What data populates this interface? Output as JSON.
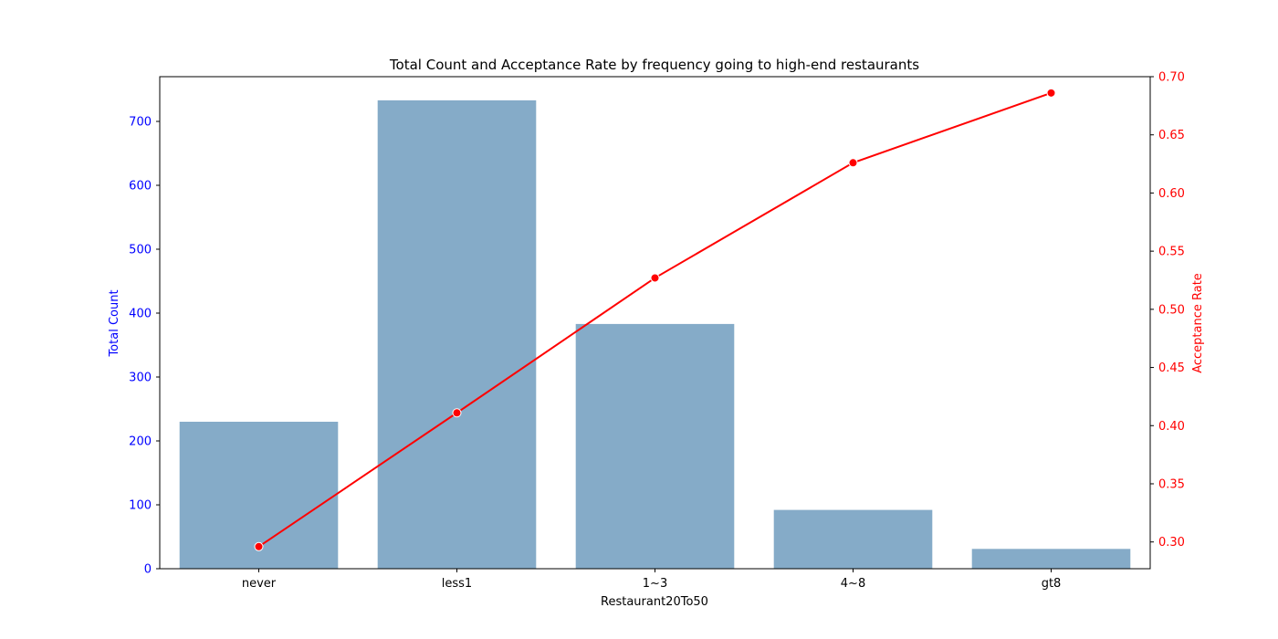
{
  "chart_data": {
    "type": "bar+line",
    "title": "Total Count and Acceptance Rate by frequency going to high-end restaurants",
    "xlabel": "Restaurant20To50",
    "categories": [
      "never",
      "less1",
      "1~3",
      "4~8",
      "gt8"
    ],
    "bars": {
      "ylabel": "Total Count",
      "values": [
        230,
        733,
        383,
        92,
        31
      ],
      "ylim": [
        0,
        770
      ],
      "yticks": [
        0,
        100,
        200,
        300,
        400,
        500,
        600,
        700
      ],
      "color": "#85abc8",
      "axis_color": "#0000ff"
    },
    "line": {
      "ylabel": "Acceptance Rate",
      "values": [
        0.296,
        0.411,
        0.527,
        0.626,
        0.686
      ],
      "ylim": [
        0.277,
        0.7
      ],
      "yticks": [
        0.3,
        0.35,
        0.4,
        0.45,
        0.5,
        0.55,
        0.6,
        0.65,
        0.7
      ],
      "color": "#ff0000",
      "marker": "circle"
    },
    "grid": false,
    "legend": "none"
  }
}
